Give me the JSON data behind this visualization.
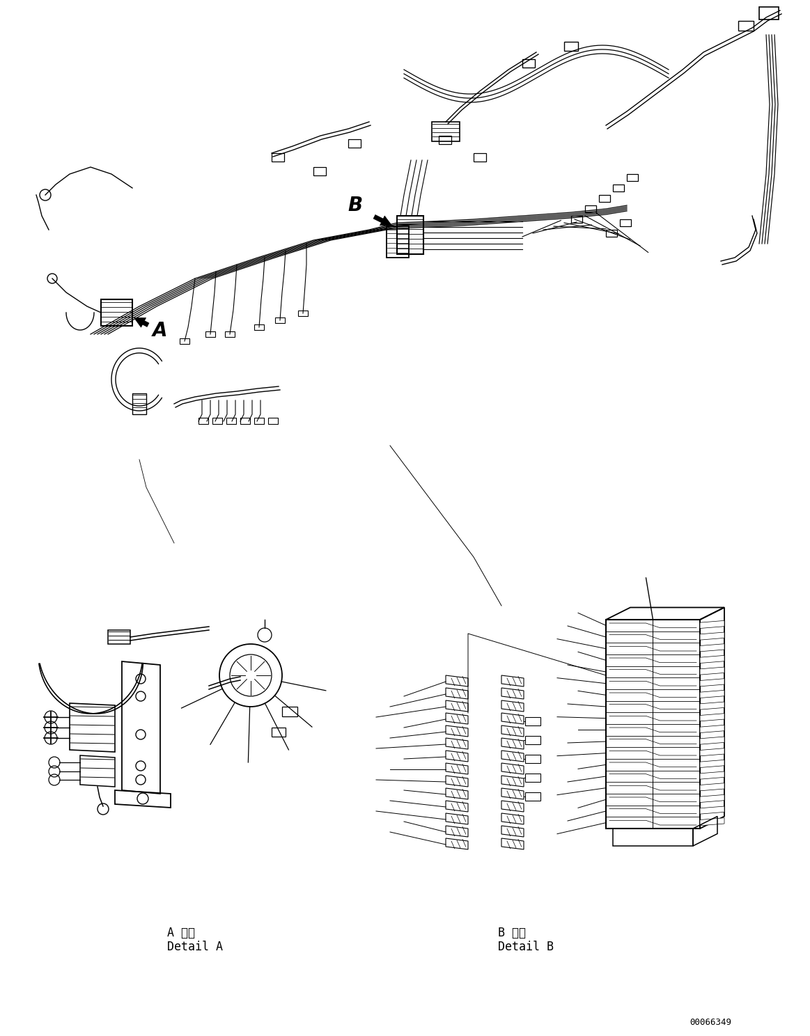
{
  "background_color": "#ffffff",
  "fig_width": 11.63,
  "fig_height": 14.88,
  "dpi": 100,
  "part_number": "00066349",
  "line_color": "#000000",
  "line_width": 1.0,
  "detail_A_label": "A 詳細",
  "detail_A_sub": "Detail A",
  "detail_B_label": "B 詳細",
  "detail_B_sub": "Detail B",
  "label_A": "A",
  "label_B": "B"
}
